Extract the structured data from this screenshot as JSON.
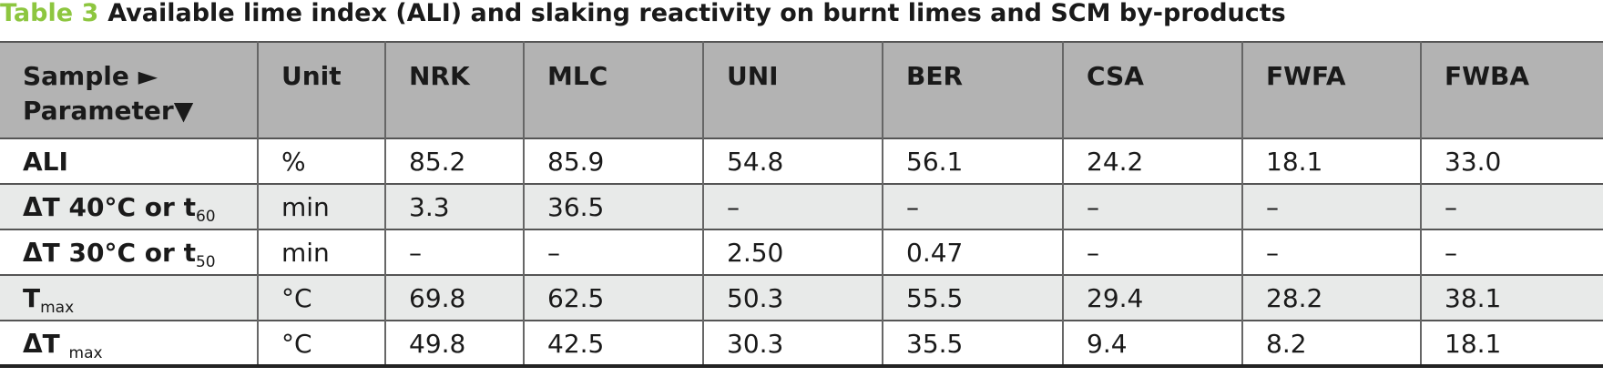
{
  "title": {
    "label": "Table 3",
    "text": "Available lime index (ALI) and slaking reactivity on burnt limes and SCM by-products"
  },
  "table": {
    "header": [
      [
        "Sample ►",
        "Parameter▼"
      ],
      "Unit",
      "NRK",
      "MLC",
      "UNI",
      "BER",
      "CSA",
      "FWFA",
      "FWBA"
    ],
    "rows": [
      [
        {
          "text": "ALI"
        },
        "%",
        "85.2",
        "85.9",
        "54.8",
        "56.1",
        "24.2",
        "18.1",
        "33.0"
      ],
      [
        {
          "text": "ΔT 40°C or t",
          "sub": "60"
        },
        "min",
        "3.3",
        "36.5",
        "–",
        "–",
        "–",
        "–",
        "–"
      ],
      [
        {
          "text": "ΔT 30°C or t",
          "sub": "50"
        },
        "min",
        "–",
        "–",
        "2.50",
        "0.47",
        "–",
        "–",
        "–"
      ],
      [
        {
          "text": "T",
          "sub": "max"
        },
        "°C",
        "69.8",
        "62.5",
        "50.3",
        "55.5",
        "29.4",
        "28.2",
        "38.1"
      ],
      [
        {
          "text": "ΔT ",
          "sub": "max"
        },
        "°C",
        "49.8",
        "42.5",
        "30.3",
        "35.5",
        "9.4",
        "8.2",
        "18.1"
      ]
    ]
  }
}
